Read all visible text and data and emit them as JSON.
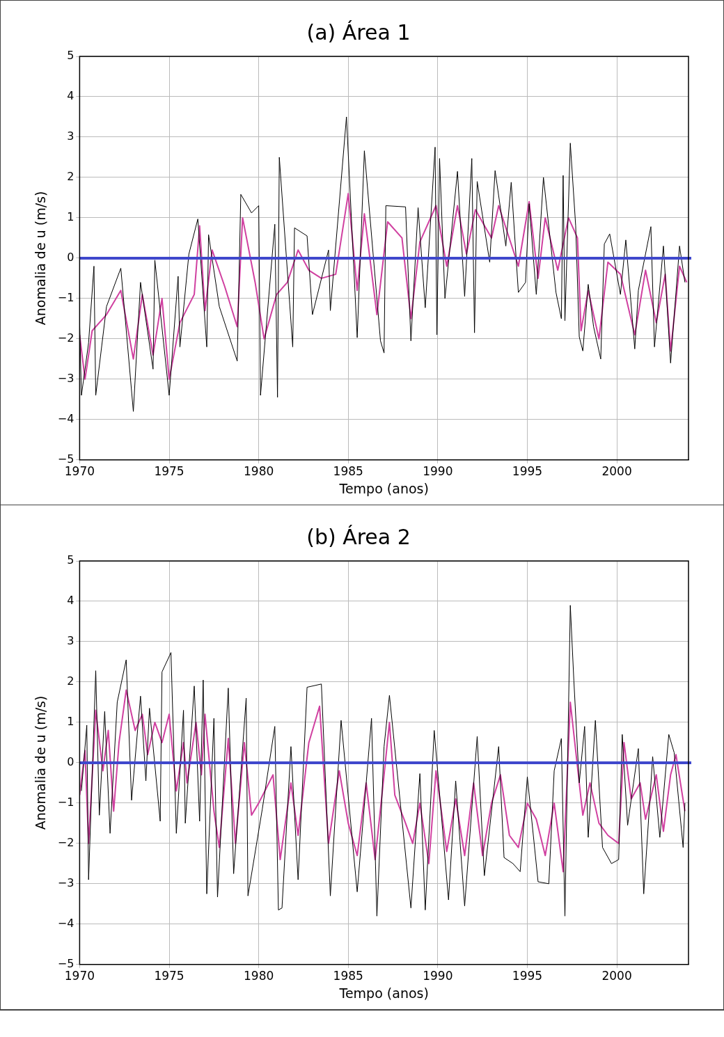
{
  "chart_data": [
    {
      "type": "line",
      "title": "(a) Área 1",
      "xlabel": "Tempo (anos)",
      "ylabel": "Anomalia de u (m/s)",
      "xlim": [
        1970,
        2004
      ],
      "xticks": [
        1970,
        1975,
        1980,
        1985,
        1990,
        1995,
        2000
      ],
      "ylim": [
        -5,
        5
      ],
      "yticks": [
        -5,
        -4,
        -3,
        -2,
        -1,
        0,
        1,
        2,
        3,
        4,
        5
      ],
      "grid": true,
      "legend": false,
      "marker": "none",
      "series": [
        {
          "color": "#000000",
          "x": [
            1970.0,
            1970.1,
            1970.5,
            1970.8,
            1970.9,
            1971.5,
            1972.3,
            1973.0,
            1973.4,
            1974.1,
            1974.2,
            1975.0,
            1975.5,
            1975.6,
            1976.1,
            1976.6,
            1977.1,
            1977.2,
            1977.8,
            1978.8,
            1979.0,
            1979.6,
            1980.0,
            1980.1,
            1980.9,
            1981.05,
            1981.15,
            1981.9,
            1982.0,
            1982.7,
            1983.0,
            1983.9,
            1984.0,
            1984.9,
            1985.5,
            1985.9,
            1986.8,
            1987.0,
            1987.1,
            1988.2,
            1988.5,
            1988.9,
            1989.3,
            1989.85,
            1989.95,
            1990.1,
            1990.4,
            1991.1,
            1991.5,
            1991.9,
            1992.05,
            1992.2,
            1992.9,
            1993.2,
            1993.8,
            1994.1,
            1994.5,
            1994.9,
            1995.1,
            1995.5,
            1995.9,
            1996.6,
            1996.9,
            1997.0,
            1997.1,
            1997.4,
            1997.7,
            1997.9,
            1998.1,
            1998.4,
            1998.7,
            1999.1,
            1999.3,
            1999.6,
            2000.2,
            2000.5,
            2001.0,
            2001.2,
            2001.9,
            2002.1,
            2002.6,
            2003.0,
            2003.5,
            2003.8
          ],
          "values": [
            -1.6,
            -3.4,
            -2.1,
            -0.2,
            -3.4,
            -1.2,
            -0.25,
            -3.8,
            -0.6,
            -2.75,
            -0.05,
            -3.4,
            -0.45,
            -2.2,
            0.1,
            0.97,
            -2.2,
            0.58,
            -1.2,
            -2.55,
            1.58,
            1.12,
            1.3,
            -3.4,
            0.84,
            -3.45,
            2.5,
            -2.2,
            0.75,
            0.55,
            -1.4,
            0.2,
            -1.3,
            3.5,
            -1.97,
            2.66,
            -2.05,
            -2.35,
            1.3,
            1.27,
            -2.05,
            1.25,
            -1.23,
            2.75,
            -1.9,
            2.47,
            -1.0,
            2.15,
            -0.95,
            2.47,
            -1.85,
            1.9,
            -0.1,
            2.17,
            0.3,
            1.88,
            -0.85,
            -0.6,
            1.35,
            -0.9,
            2.0,
            -0.85,
            -1.5,
            2.05,
            -1.55,
            2.85,
            0.8,
            -1.95,
            -2.3,
            -0.65,
            -1.7,
            -2.5,
            0.35,
            0.6,
            -0.9,
            0.45,
            -2.25,
            -0.8,
            0.78,
            -2.2,
            0.3,
            -2.6,
            0.3,
            -0.6
          ]
        },
        {
          "color": "#d040a0",
          "x": [
            1970.0,
            1970.3,
            1970.7,
            1971.5,
            1972.3,
            1973.0,
            1973.5,
            1974.1,
            1974.6,
            1975.0,
            1975.6,
            1976.4,
            1976.7,
            1977.0,
            1977.4,
            1978.1,
            1978.8,
            1979.1,
            1979.8,
            1980.3,
            1981.0,
            1981.6,
            1982.2,
            1982.8,
            1983.5,
            1984.3,
            1985.0,
            1985.5,
            1985.9,
            1986.6,
            1987.2,
            1988.0,
            1988.5,
            1989.0,
            1989.9,
            1990.5,
            1991.1,
            1991.6,
            1992.1,
            1993.0,
            1993.4,
            1994.5,
            1995.1,
            1995.6,
            1996.0,
            1996.7,
            1997.3,
            1997.8,
            1998.0,
            1998.4,
            1999.0,
            1999.5,
            2000.2,
            2001.0,
            2001.6,
            2002.2,
            2002.7,
            2003.0,
            2003.5,
            2003.9
          ],
          "values": [
            -1.9,
            -3.0,
            -1.8,
            -1.4,
            -0.8,
            -2.5,
            -0.9,
            -2.4,
            -1.0,
            -3.0,
            -1.6,
            -0.9,
            0.8,
            -1.3,
            0.2,
            -0.7,
            -1.7,
            1.0,
            -0.6,
            -2.0,
            -0.9,
            -0.6,
            0.2,
            -0.3,
            -0.5,
            -0.4,
            1.6,
            -0.8,
            1.1,
            -1.4,
            0.9,
            0.5,
            -1.5,
            0.4,
            1.3,
            -0.2,
            1.3,
            0.1,
            1.2,
            0.5,
            1.3,
            -0.2,
            1.4,
            -0.5,
            1.0,
            -0.3,
            1.0,
            0.5,
            -1.8,
            -0.8,
            -2.0,
            -0.1,
            -0.4,
            -1.9,
            -0.3,
            -1.6,
            -0.4,
            -2.3,
            -0.2,
            -0.6
          ]
        }
      ],
      "ref_lines": [
        {
          "axis": "y",
          "value": 0,
          "color": "#3f48cc"
        }
      ]
    },
    {
      "type": "line",
      "title": "(b) Área 2",
      "xlabel": "Tempo (anos)",
      "ylabel": "Anomalia de u (m/s)",
      "xlim": [
        1970,
        2004
      ],
      "xticks": [
        1970,
        1975,
        1980,
        1985,
        1990,
        1995,
        2000
      ],
      "ylim": [
        -5,
        5
      ],
      "yticks": [
        -5,
        -4,
        -3,
        -2,
        -1,
        0,
        1,
        2,
        3,
        4,
        5
      ],
      "grid": true,
      "legend": false,
      "marker": "none",
      "series": [
        {
          "color": "#000000",
          "x": [
            1970.1,
            1970.4,
            1970.5,
            1970.9,
            1971.1,
            1971.4,
            1971.7,
            1972.1,
            1972.6,
            1972.9,
            1973.4,
            1973.7,
            1973.9,
            1974.5,
            1974.6,
            1975.1,
            1975.4,
            1975.8,
            1975.9,
            1976.4,
            1976.7,
            1976.9,
            1977.1,
            1977.5,
            1977.7,
            1978.3,
            1978.6,
            1979.3,
            1979.4,
            1980.2,
            1980.9,
            1981.1,
            1981.3,
            1981.8,
            1982.2,
            1982.7,
            1983.5,
            1984.0,
            1984.6,
            1985.5,
            1986.3,
            1986.6,
            1987.0,
            1987.3,
            1988.5,
            1989.0,
            1989.3,
            1989.8,
            1990.6,
            1991.0,
            1991.5,
            1992.2,
            1992.6,
            1993.4,
            1993.7,
            1994.2,
            1994.6,
            1995.0,
            1995.6,
            1996.2,
            1996.5,
            1996.9,
            1997.1,
            1997.4,
            1997.6,
            1997.9,
            1998.2,
            1998.4,
            1998.8,
            1999.2,
            1999.7,
            2000.1,
            2000.3,
            2000.6,
            2001.2,
            2001.5,
            2002.0,
            2002.4,
            2002.9,
            2003.2,
            2003.7,
            2003.8
          ],
          "values": [
            -0.7,
            0.93,
            -2.9,
            2.28,
            -1.3,
            1.27,
            -1.75,
            1.5,
            2.55,
            -0.93,
            1.65,
            -0.45,
            1.35,
            -1.45,
            2.25,
            2.73,
            -1.75,
            1.3,
            -1.5,
            1.9,
            -1.45,
            2.05,
            -3.25,
            1.1,
            -3.33,
            1.85,
            -2.75,
            1.6,
            -3.3,
            -1.15,
            0.9,
            -3.65,
            -3.6,
            0.4,
            -2.9,
            1.87,
            1.95,
            -3.3,
            1.05,
            -3.2,
            1.1,
            -3.8,
            0.4,
            1.67,
            -3.6,
            -0.27,
            -3.65,
            0.8,
            -3.4,
            -0.45,
            -3.55,
            0.65,
            -2.8,
            0.4,
            -2.35,
            -2.5,
            -2.7,
            -0.35,
            -2.95,
            -3.0,
            -0.2,
            0.6,
            -3.8,
            3.9,
            2.02,
            -0.5,
            0.9,
            -1.85,
            1.05,
            -2.1,
            -2.5,
            -2.4,
            0.7,
            -1.55,
            0.35,
            -3.25,
            0.15,
            -1.85,
            0.7,
            0.25,
            -2.1,
            -1.0
          ]
        },
        {
          "color": "#d040a0",
          "x": [
            1970.0,
            1970.3,
            1970.5,
            1970.9,
            1971.3,
            1971.6,
            1971.9,
            1972.2,
            1972.6,
            1973.1,
            1973.5,
            1973.8,
            1974.2,
            1974.6,
            1975.0,
            1975.4,
            1975.8,
            1976.0,
            1976.5,
            1976.8,
            1977.0,
            1977.5,
            1977.8,
            1978.3,
            1978.7,
            1979.2,
            1979.6,
            1980.0,
            1980.8,
            1981.2,
            1981.8,
            1982.2,
            1982.8,
            1983.4,
            1983.9,
            1984.5,
            1985.0,
            1985.5,
            1986.0,
            1986.5,
            1987.0,
            1987.3,
            1987.6,
            1988.2,
            1988.6,
            1989.0,
            1989.5,
            1989.9,
            1990.5,
            1991.0,
            1991.5,
            1992.0,
            1992.5,
            1993.0,
            1993.5,
            1994.0,
            1994.5,
            1995.0,
            1995.5,
            1996.0,
            1996.5,
            1997.0,
            1997.4,
            1997.7,
            1998.1,
            1998.5,
            1999.0,
            1999.5,
            2000.1,
            2000.4,
            2000.8,
            2001.3,
            2001.6,
            2002.2,
            2002.6,
            2003.0,
            2003.3,
            2003.8
          ],
          "values": [
            -0.8,
            0.3,
            -2.0,
            1.3,
            -0.2,
            0.8,
            -1.2,
            0.5,
            1.8,
            0.8,
            1.2,
            0.2,
            1.0,
            0.5,
            1.2,
            -0.7,
            0.5,
            -0.5,
            1.0,
            -0.3,
            1.2,
            -1.2,
            -2.1,
            0.6,
            -2.0,
            0.5,
            -1.3,
            -1.0,
            -0.3,
            -2.4,
            -0.5,
            -1.8,
            0.5,
            1.4,
            -2.0,
            -0.2,
            -1.5,
            -2.3,
            -0.5,
            -2.4,
            -0.3,
            1.0,
            -0.8,
            -1.5,
            -2.0,
            -1.0,
            -2.5,
            -0.2,
            -2.2,
            -0.9,
            -2.3,
            -0.5,
            -2.3,
            -1.0,
            -0.3,
            -1.8,
            -2.1,
            -1.0,
            -1.4,
            -2.3,
            -1.0,
            -2.7,
            1.5,
            0.3,
            -1.3,
            -0.5,
            -1.5,
            -1.8,
            -2.0,
            0.5,
            -0.9,
            -0.5,
            -1.4,
            -0.3,
            -1.7,
            -0.3,
            0.2,
            -1.2
          ]
        }
      ],
      "ref_lines": [
        {
          "axis": "y",
          "value": 0,
          "color": "#3f48cc"
        }
      ]
    }
  ]
}
